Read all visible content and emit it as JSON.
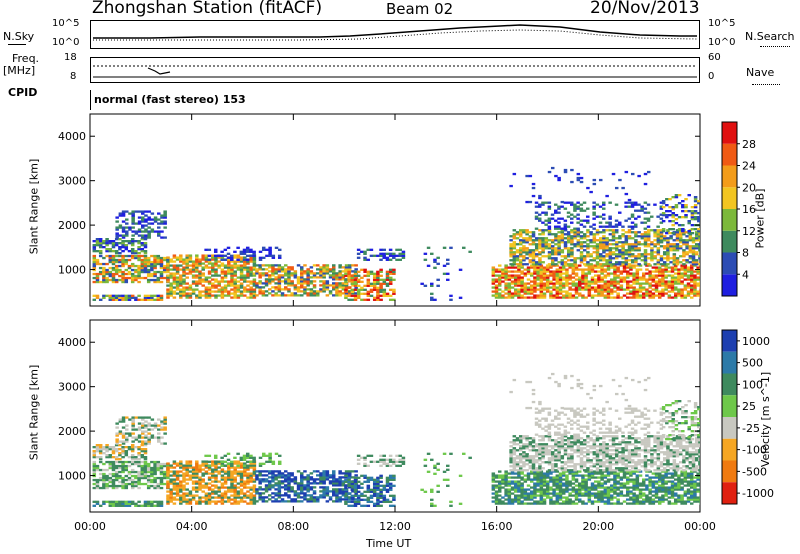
{
  "header": {
    "station": "Zhongshan Station (fitACF)",
    "beam": "Beam 02",
    "date": "20/Nov/2013"
  },
  "noise_panel": {
    "left_label": "N.Sky",
    "right_label": "N.Search",
    "left_ticks": [
      "10^5",
      "10^0"
    ],
    "right_ticks": [
      "10^5",
      "10^0"
    ]
  },
  "freq_panel": {
    "left_label": "Freq.",
    "left_unit": "[MHz]",
    "right_label": "Nave",
    "left_ticks": [
      "18",
      "8"
    ],
    "right_ticks": [
      "60",
      "0"
    ]
  },
  "cpid": {
    "label": "CPID",
    "value": "normal (fast stereo) 153"
  },
  "chart_data": [
    {
      "type": "heatmap",
      "name": "power",
      "ylabel": "Slant Range [km]",
      "y_ticks": [
        "1000",
        "2000",
        "3000",
        "4000"
      ],
      "ylim": [
        180,
        4500
      ],
      "xlim": [
        0,
        24
      ],
      "colorbar_label": "Power [dB]",
      "colorbar_ticks": [
        "4",
        "8",
        "12",
        "16",
        "20",
        "24",
        "28"
      ],
      "colorbar_colors": [
        "#1f1fe0",
        "#2c4cb4",
        "#3e8a5e",
        "#7cb83a",
        "#f2c521",
        "#f39c1a",
        "#f05a14",
        "#e01010"
      ]
    },
    {
      "type": "heatmap",
      "name": "velocity",
      "ylabel": "Slant Range [km]",
      "y_ticks": [
        "1000",
        "2000",
        "3000",
        "4000"
      ],
      "ylim": [
        180,
        4500
      ],
      "xlim": [
        0,
        24
      ],
      "xlabel": "Time UT",
      "x_ticks": [
        "00:00",
        "04:00",
        "08:00",
        "12:00",
        "16:00",
        "20:00",
        "00:00"
      ],
      "colorbar_label": "Velocity [m s^-1]",
      "colorbar_ticks": [
        "1000",
        "500",
        "100",
        "25",
        "-25",
        "-100",
        "-500",
        "-1000"
      ],
      "colorbar_colors": [
        "#1d3fb0",
        "#2c7aa8",
        "#3e8a5e",
        "#6ec84a",
        "#c8c8c0",
        "#f5a623",
        "#f07a10",
        "#e02010"
      ]
    }
  ]
}
